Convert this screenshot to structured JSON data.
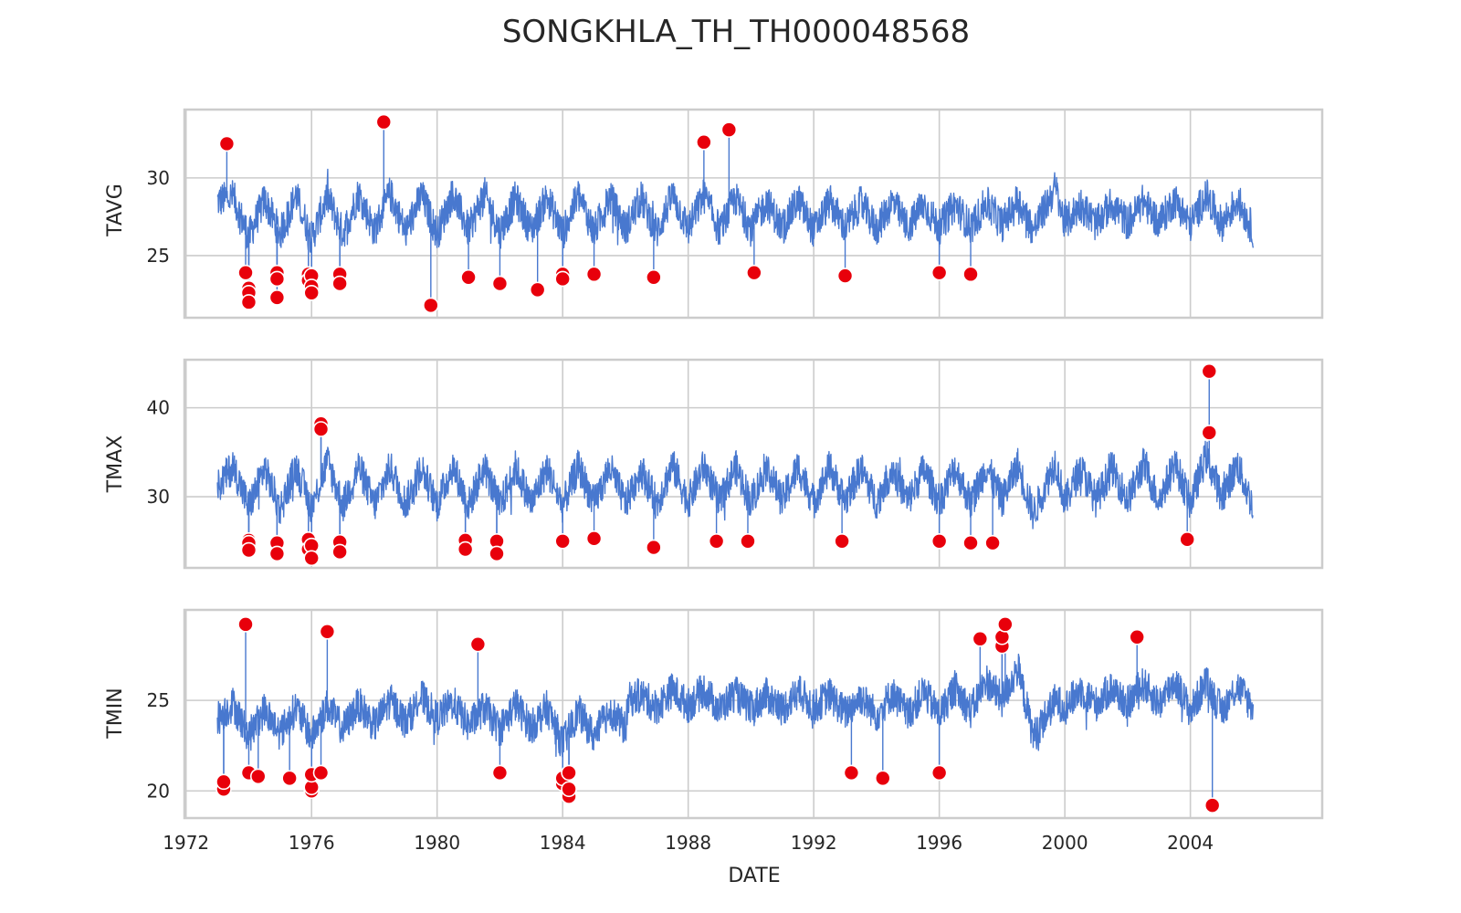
{
  "chart_data": {
    "type": "line",
    "title": "SONGKHLA_TH_TH000048568",
    "xlabel": "DATE",
    "x_ticks": [
      "1972",
      "1976",
      "1980",
      "1984",
      "1988",
      "1992",
      "1996",
      "2000",
      "2004"
    ],
    "xlim": [
      1971.95,
      2008.2
    ],
    "grid": true,
    "marker_color": "#e8000b",
    "line_color": "#4878cf",
    "panels": [
      {
        "ylabel": "TAVG",
        "ylim": [
          21.0,
          34.4
        ],
        "y_ticks": [
          25,
          30
        ],
        "series": [
          {
            "x": [
              1973.0,
              1973.5,
              1974.0,
              1974.5,
              1975.0,
              1975.5,
              1976.0,
              1976.5,
              1977.0,
              1977.5,
              1978.0,
              1978.5,
              1979.0,
              1979.5,
              1980.0,
              1980.5,
              1981.0,
              1981.5,
              1982.0,
              1982.5,
              1983.0,
              1983.5,
              1984.0,
              1984.5,
              1985.0,
              1985.5,
              1986.0,
              1986.5,
              1987.0,
              1987.5,
              1988.0,
              1988.5,
              1989.0,
              1989.5,
              1990.0,
              1990.5,
              1991.0,
              1991.5,
              1992.0,
              1992.5,
              1993.0,
              1993.5,
              1994.0,
              1994.5,
              1995.0,
              1995.5,
              1996.0,
              1996.5,
              1997.0,
              1997.5,
              1998.0,
              1998.5,
              1999.0,
              1999.7,
              2000.0,
              2000.5,
              2001.0,
              2001.5,
              2002.0,
              2002.5,
              2003.0,
              2003.5,
              2004.0,
              2004.5,
              2005.0,
              2005.5,
              2006.0
            ],
            "y": [
              28.5,
              28.8,
              26.2,
              28.6,
              26.4,
              28.9,
              26.1,
              28.8,
              26.4,
              29.0,
              26.6,
              29.0,
              26.5,
              28.9,
              26.4,
              29.0,
              26.6,
              29.0,
              26.5,
              28.7,
              26.6,
              28.8,
              26.4,
              28.9,
              26.5,
              28.8,
              26.7,
              28.7,
              26.5,
              28.9,
              26.7,
              28.9,
              26.6,
              28.7,
              26.7,
              28.5,
              26.7,
              28.6,
              26.6,
              28.5,
              26.8,
              28.4,
              26.7,
              28.5,
              26.8,
              28.3,
              26.8,
              28.3,
              26.8,
              28.4,
              27.0,
              28.6,
              26.6,
              29.4,
              27.0,
              28.3,
              27.0,
              28.4,
              27.1,
              28.5,
              27.1,
              28.6,
              27.0,
              28.9,
              27.0,
              28.6,
              26.6
            ]
          }
        ],
        "outliers": {
          "x": [
            1973.3,
            1973.9,
            1974.0,
            1974.0,
            1974.0,
            1974.9,
            1974.9,
            1974.9,
            1975.9,
            1975.9,
            1976.0,
            1976.0,
            1976.0,
            1976.9,
            1976.9,
            1978.3,
            1979.8,
            1981.0,
            1982.0,
            1983.2,
            1984.0,
            1984.0,
            1985.0,
            1986.9,
            1988.5,
            1989.3,
            1990.1,
            1993.0,
            1996.0,
            1997.0
          ],
          "y": [
            32.2,
            23.9,
            22.9,
            22.6,
            22.0,
            23.9,
            23.5,
            22.3,
            23.8,
            23.4,
            23.7,
            23.0,
            22.6,
            23.8,
            23.2,
            33.6,
            21.8,
            23.6,
            23.2,
            22.8,
            23.8,
            23.5,
            23.8,
            23.6,
            32.3,
            33.1,
            23.9,
            23.7,
            23.9,
            23.8
          ]
        }
      },
      {
        "ylabel": "TMAX",
        "ylim": [
          22.0,
          45.4
        ],
        "y_ticks": [
          30,
          40
        ],
        "series": [
          {
            "x": [
              1973.0,
              1973.5,
              1974.0,
              1974.5,
              1975.0,
              1975.5,
              1976.0,
              1976.5,
              1977.0,
              1977.5,
              1978.0,
              1978.5,
              1979.0,
              1979.5,
              1980.0,
              1980.5,
              1981.0,
              1981.5,
              1982.0,
              1982.5,
              1983.0,
              1983.5,
              1984.0,
              1984.5,
              1985.0,
              1985.5,
              1986.0,
              1986.5,
              1987.0,
              1987.5,
              1988.0,
              1988.5,
              1989.0,
              1989.5,
              1990.0,
              1990.5,
              1991.0,
              1991.5,
              1992.0,
              1992.5,
              1993.0,
              1993.5,
              1994.0,
              1994.5,
              1995.0,
              1995.5,
              1996.0,
              1996.5,
              1997.0,
              1997.5,
              1998.0,
              1998.5,
              1999.0,
              1999.7,
              2000.0,
              2000.5,
              2001.0,
              2001.5,
              2002.0,
              2002.5,
              2003.0,
              2003.5,
              2004.0,
              2004.5,
              2005.0,
              2005.5,
              2006.0
            ],
            "y": [
              31.0,
              33.5,
              28.8,
              33.2,
              28.6,
              33.4,
              28.7,
              34.0,
              29.0,
              33.4,
              29.0,
              33.3,
              29.2,
              33.3,
              29.1,
              33.5,
              29.0,
              33.4,
              28.9,
              33.3,
              29.2,
              33.2,
              29.0,
              33.4,
              29.2,
              33.3,
              29.2,
              33.1,
              29.2,
              33.6,
              29.4,
              33.5,
              29.3,
              33.4,
              29.4,
              33.3,
              29.5,
              33.4,
              29.4,
              33.3,
              29.5,
              33.2,
              29.4,
              33.2,
              29.5,
              33.1,
              29.4,
              33.3,
              29.3,
              33.4,
              29.6,
              33.6,
              28.0,
              34.0,
              29.3,
              33.2,
              29.6,
              33.3,
              29.6,
              33.6,
              29.5,
              33.8,
              29.3,
              34.6,
              30.0,
              33.6,
              28.8
            ]
          }
        ],
        "outliers": {
          "x": [
            1974.0,
            1974.0,
            1974.0,
            1974.9,
            1974.9,
            1975.9,
            1975.9,
            1976.0,
            1976.0,
            1976.3,
            1976.3,
            1976.9,
            1976.9,
            1980.9,
            1980.9,
            1981.9,
            1981.9,
            1984.0,
            1985.0,
            1986.9,
            1988.9,
            1989.9,
            1992.9,
            1996.0,
            1997.0,
            1997.7,
            2003.9,
            2004.6,
            2004.6
          ],
          "y": [
            25.1,
            24.8,
            24.0,
            24.8,
            23.6,
            25.2,
            24.1,
            24.5,
            23.1,
            38.2,
            37.6,
            24.9,
            23.8,
            25.1,
            24.1,
            25.0,
            23.6,
            25.0,
            25.3,
            24.3,
            25.0,
            25.0,
            25.0,
            25.0,
            24.8,
            24.8,
            25.2,
            44.1,
            37.2
          ]
        }
      },
      {
        "ylabel": "TMIN",
        "ylim": [
          18.5,
          30.0
        ],
        "y_ticks": [
          20,
          25
        ],
        "series": [
          {
            "x": [
              1973.0,
              1973.5,
              1974.0,
              1974.5,
              1975.0,
              1975.5,
              1976.0,
              1976.5,
              1977.0,
              1977.5,
              1978.0,
              1978.5,
              1979.0,
              1979.5,
              1980.0,
              1980.5,
              1981.0,
              1981.5,
              1982.0,
              1982.5,
              1983.0,
              1983.5,
              1984.0,
              1984.5,
              1985.0,
              1985.5,
              1986.0,
              1986.1,
              1986.5,
              1987.0,
              1987.5,
              1988.0,
              1988.5,
              1989.0,
              1989.5,
              1990.0,
              1990.5,
              1991.0,
              1991.5,
              1992.0,
              1992.5,
              1993.0,
              1993.5,
              1994.0,
              1994.5,
              1995.0,
              1995.5,
              1996.0,
              1996.5,
              1997.0,
              1997.5,
              1998.0,
              1998.5,
              1999.0,
              1999.7,
              2000.0,
              2000.5,
              2001.0,
              2001.5,
              2002.0,
              2002.5,
              2003.0,
              2003.5,
              2004.0,
              2004.5,
              2005.0,
              2005.5,
              2006.0
            ],
            "y": [
              24.0,
              24.8,
              23.0,
              24.5,
              23.2,
              24.6,
              23.0,
              24.7,
              23.4,
              24.8,
              23.6,
              25.0,
              23.8,
              25.2,
              24.0,
              24.9,
              23.6,
              24.6,
              23.4,
              24.8,
              23.5,
              24.6,
              22.6,
              24.4,
              23.0,
              24.5,
              23.4,
              25.0,
              25.3,
              24.6,
              25.6,
              24.7,
              25.6,
              24.5,
              25.4,
              24.5,
              25.3,
              24.5,
              25.5,
              24.6,
              25.3,
              24.3,
              25.2,
              24.2,
              25.4,
              24.2,
              25.5,
              24.2,
              25.7,
              24.4,
              26.1,
              25.0,
              26.8,
              23.0,
              25.0,
              24.6,
              25.6,
              24.8,
              25.7,
              24.8,
              25.9,
              24.8,
              26.1,
              24.4,
              26.0,
              24.4,
              25.8,
              24.6
            ]
          }
        ],
        "outliers": {
          "x": [
            1973.2,
            1973.2,
            1973.9,
            1974.0,
            1974.3,
            1975.3,
            1976.0,
            1976.0,
            1976.0,
            1976.3,
            1976.5,
            1981.3,
            1982.0,
            1984.0,
            1984.0,
            1984.2,
            1984.2,
            1984.2,
            1993.2,
            1994.2,
            1996.0,
            1997.3,
            1998.0,
            1998.0,
            1998.1,
            2002.3,
            2004.7
          ],
          "y": [
            20.1,
            20.5,
            29.2,
            21.0,
            20.8,
            20.7,
            20.0,
            20.2,
            20.9,
            21.0,
            28.8,
            28.1,
            21.0,
            20.4,
            20.7,
            19.7,
            20.1,
            21.0,
            21.0,
            20.7,
            21.0,
            28.4,
            28.0,
            28.5,
            29.2,
            28.5,
            19.2
          ]
        }
      }
    ]
  }
}
